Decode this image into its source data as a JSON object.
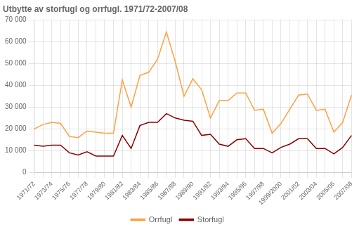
{
  "chart_data": {
    "type": "line",
    "title": "Utbytte av storfugl og orrfugl. 1971/72-2007/08",
    "categories": [
      "1971/72",
      null,
      "1973/74",
      null,
      "1975/76",
      null,
      "1977/78",
      null,
      "1979/80",
      null,
      "1981/82",
      null,
      "1983/84",
      null,
      "1985/86",
      null,
      "1987/88",
      null,
      "1989/90",
      null,
      "1991/92",
      null,
      "1993/94",
      null,
      "1995/96",
      null,
      "1997/98",
      null,
      "1999/2000",
      null,
      "2001/02",
      null,
      "2003/04",
      null,
      "2005/06",
      null,
      "2007/08"
    ],
    "series": [
      {
        "name": "Orrfugl",
        "color": "#FFA040",
        "values": [
          20000,
          22000,
          23000,
          22500,
          16500,
          16000,
          19000,
          18500,
          18000,
          18000,
          42500,
          30000,
          44500,
          46000,
          52000,
          64500,
          51000,
          35000,
          43000,
          38000,
          25000,
          33000,
          33000,
          36500,
          36500,
          28500,
          29000,
          18000,
          22500,
          29000,
          35500,
          36000,
          28500,
          29000,
          18500,
          23000,
          35500
        ]
      },
      {
        "name": "Storfugl",
        "color": "#8B0000",
        "values": [
          12500,
          12000,
          12500,
          12500,
          9000,
          8000,
          9500,
          7500,
          7500,
          7500,
          17000,
          11000,
          21500,
          23000,
          23000,
          27000,
          25000,
          24000,
          23500,
          17000,
          17500,
          13000,
          12000,
          15000,
          15500,
          11000,
          11000,
          9000,
          11500,
          13000,
          15500,
          15500,
          11000,
          11000,
          8500,
          11500,
          17000
        ]
      }
    ],
    "ylim": [
      0,
      70000
    ],
    "yticks": [
      0,
      {
        "value": 10000,
        "label": "10 000"
      },
      {
        "value": 20000,
        "label": "20 000"
      },
      {
        "value": 30000,
        "label": "30 000"
      },
      {
        "value": 40000,
        "label": "40 000"
      },
      {
        "value": 50000,
        "label": "50 000"
      },
      {
        "value": 60000,
        "label": "60 000"
      },
      {
        "value": 70000,
        "label": "70 000"
      }
    ],
    "grid": true,
    "legend": "bottom"
  }
}
